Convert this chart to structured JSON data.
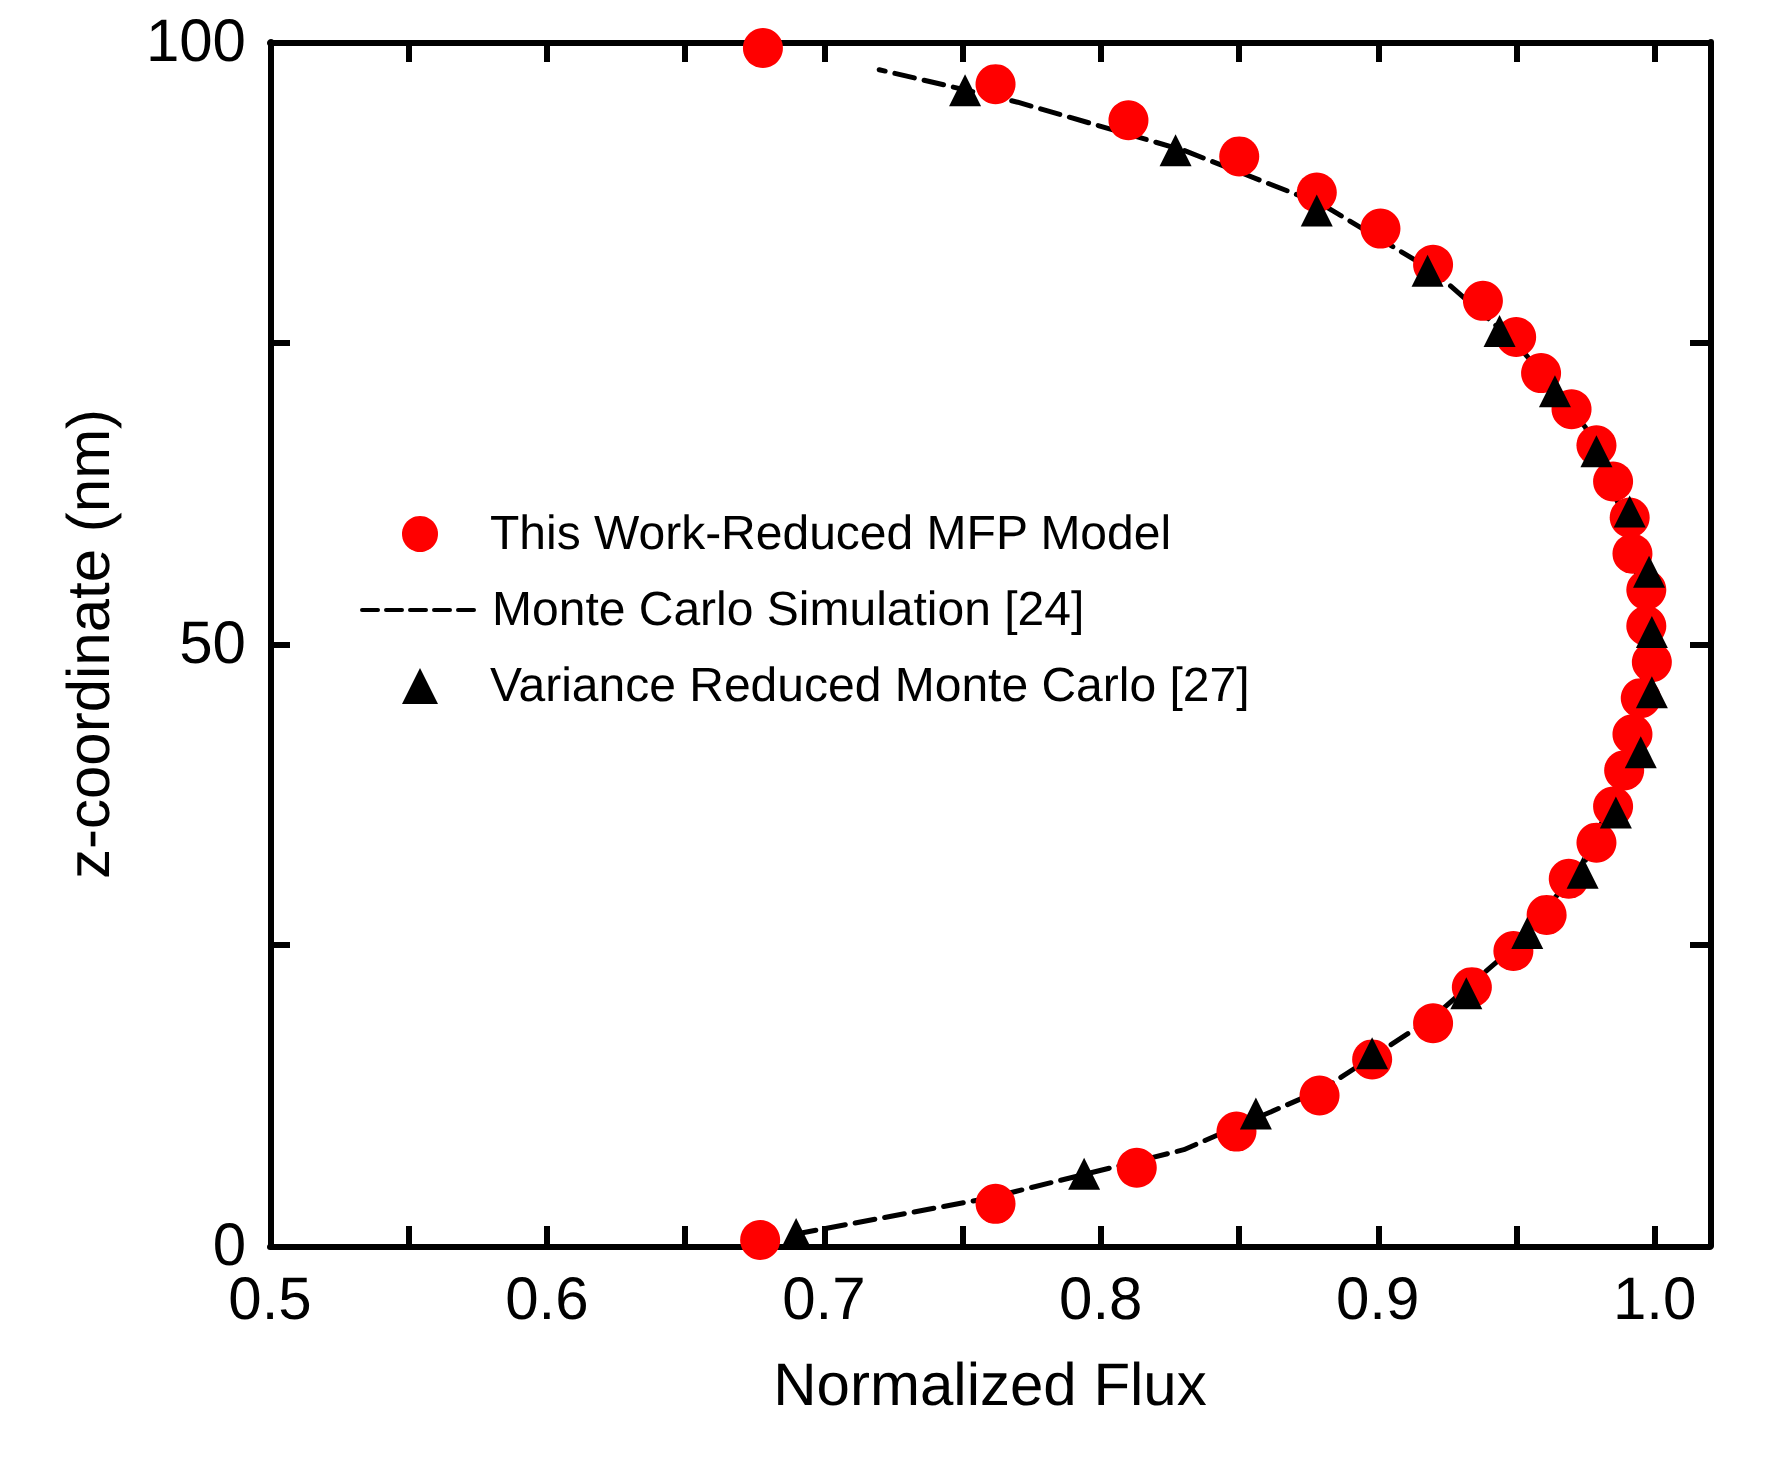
{
  "chart_data": {
    "type": "scatter",
    "xlabel": "Normalized Flux",
    "ylabel": "z-coordinate (nm)",
    "xlim": [
      0.5,
      1.02
    ],
    "ylim": [
      0,
      100
    ],
    "xticks": [
      0.5,
      {
        "value": 0.55,
        "label": null
      },
      0.6,
      {
        "value": 0.65,
        "label": null
      },
      0.7,
      {
        "value": 0.75,
        "label": null
      },
      0.8,
      {
        "value": 0.85,
        "label": null
      },
      0.9,
      {
        "value": 0.95,
        "label": null
      },
      {
        "value": 1,
        "label": "1.0"
      }
    ],
    "yticks": [
      0,
      {
        "value": 25,
        "label": null
      },
      50,
      {
        "value": 75,
        "label": null
      },
      100
    ],
    "grid": false,
    "legend": "left",
    "series": [
      {
        "name": "This Work-Reduced MFP Model",
        "marker": "circle",
        "color": "#ff0000",
        "x": [
          0.677,
          0.762,
          0.813,
          0.849,
          0.879,
          0.898,
          0.92,
          0.934,
          0.949,
          0.961,
          0.969,
          0.979,
          0.985,
          0.989,
          0.992,
          0.995,
          0.999,
          0.997,
          0.997,
          0.992,
          0.991,
          0.985,
          0.979,
          0.97,
          0.959,
          0.95,
          0.938,
          0.92,
          0.901,
          0.878,
          0.85,
          0.81,
          0.762,
          0.678
        ],
        "values": [
          0.5,
          3.5,
          6.5,
          9.5,
          12.5,
          15.5,
          18.5,
          21.5,
          24.5,
          27.5,
          30.5,
          33.5,
          36.5,
          39.5,
          42.5,
          45.5,
          48.5,
          51.5,
          54.5,
          57.5,
          60.5,
          63.5,
          66.5,
          69.5,
          72.5,
          75.5,
          78.5,
          81.5,
          84.5,
          87.5,
          90.5,
          93.5,
          96.5,
          99.5
        ]
      },
      {
        "name": "Monte Carlo Simulation [24]",
        "type": "line",
        "marker": "none",
        "line_style": "dashed",
        "color": "#000000",
        "x": [
          0.69,
          0.76,
          0.83,
          0.88,
          0.92,
          0.95,
          0.975,
          0.99,
          0.998,
          0.99,
          0.975,
          0.95,
          0.92,
          0.88,
          0.83,
          0.77,
          0.72
        ],
        "values": [
          1,
          4,
          8,
          13,
          19,
          25,
          32,
          40,
          50,
          60,
          68,
          75,
          81,
          86.5,
          91,
          95,
          97.7
        ]
      },
      {
        "name": "Variance Reduced Monte Carlo [27]",
        "marker": "triangle",
        "color": "#000000",
        "x": [
          0.69,
          0.794,
          0.856,
          0.898,
          0.932,
          0.954,
          0.974,
          0.986,
          0.995,
          0.999,
          0.999,
          0.998,
          0.991,
          0.979,
          0.964,
          0.944,
          0.918,
          0.878,
          0.827,
          0.751
        ],
        "values": [
          1,
          6,
          11,
          16,
          21,
          26,
          31,
          36,
          41,
          46,
          51,
          56,
          61,
          66,
          71,
          76,
          81,
          86,
          91,
          96
        ]
      }
    ]
  }
}
